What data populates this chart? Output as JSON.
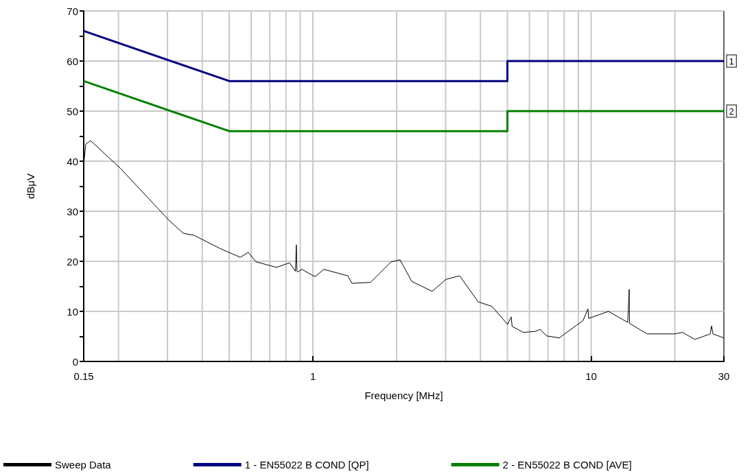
{
  "chart_data": {
    "type": "line",
    "xlabel": "Frequency [MHz]",
    "ylabel": "dBμV",
    "log": "x",
    "grid": true,
    "legend": "bottom",
    "marker": "none",
    "line_style": "solid",
    "xlim": [
      0.15,
      30
    ],
    "ylim": [
      0,
      70
    ],
    "xticks": [
      0.15,
      {
        "value": 0.2,
        "label": null
      },
      {
        "value": 0.3,
        "label": null
      },
      {
        "value": 0.4,
        "label": null
      },
      {
        "value": 0.5,
        "label": null
      },
      {
        "value": 0.6,
        "label": null
      },
      {
        "value": 0.7,
        "label": null
      },
      {
        "value": 0.8,
        "label": null
      },
      {
        "value": 0.9,
        "label": null
      },
      1,
      {
        "value": 2,
        "label": null
      },
      {
        "value": 3,
        "label": null
      },
      {
        "value": 4,
        "label": null
      },
      {
        "value": 5,
        "label": null
      },
      {
        "value": 6,
        "label": null
      },
      {
        "value": 7,
        "label": null
      },
      {
        "value": 8,
        "label": null
      },
      {
        "value": 9,
        "label": null
      },
      10,
      {
        "value": 20,
        "label": null
      },
      30
    ],
    "yticks": [
      0,
      10,
      20,
      30,
      40,
      50,
      60,
      70
    ],
    "series": [
      {
        "name": "Sweep Data",
        "color": "#000000",
        "x": [
          0.15,
          0.1526,
          0.1588,
          0.203,
          0.305,
          0.342,
          0.374,
          0.462,
          0.548,
          0.586,
          0.624,
          0.74,
          0.824,
          0.865,
          0.872,
          0.876,
          0.882,
          0.913,
          1.011,
          1.023,
          1.094,
          1.335,
          1.381,
          1.611,
          1.909,
          2.057,
          2.265,
          2.684,
          3.008,
          3.369,
          3.927,
          4.4,
          5.01,
          5.16,
          5.2,
          5.71,
          6.29,
          6.55,
          6.93,
          7.68,
          9.36,
          9.74,
          9.8,
          11.55,
          13.54,
          13.7,
          13.75,
          15.9,
          19.9,
          21.3,
          23.6,
          26.8,
          27.1,
          27.4,
          30
        ],
        "values": [
          39.3,
          43.4,
          44.1,
          38.6,
          28.1,
          25.6,
          25.2,
          22.6,
          20.8,
          21.8,
          19.9,
          18.8,
          19.7,
          18.0,
          23.3,
          18.0,
          17.9,
          18.4,
          17.0,
          17.0,
          18.4,
          17.1,
          15.6,
          15.8,
          19.9,
          20.3,
          16.0,
          14.0,
          16.4,
          17.1,
          11.9,
          11.0,
          7.4,
          8.9,
          7.0,
          5.8,
          6.0,
          6.4,
          5.1,
          4.7,
          8.2,
          10.5,
          8.6,
          10.0,
          7.8,
          14.4,
          7.6,
          5.5,
          5.5,
          5.8,
          4.4,
          5.5,
          7.1,
          5.5,
          4.7
        ]
      },
      {
        "name": "1 - EN55022 B COND [QP]",
        "color": "#000080",
        "x": [
          0.15,
          0.5,
          5,
          5,
          30
        ],
        "values": [
          66,
          56,
          56,
          60,
          60
        ]
      },
      {
        "name": "2 - EN55022 B COND [AVE]",
        "color": "#008000",
        "x": [
          0.15,
          0.5,
          5,
          5,
          30
        ],
        "values": [
          56,
          46,
          46,
          50,
          50
        ]
      }
    ],
    "annotations": [
      {
        "text": "1",
        "x": 30,
        "y": 60
      },
      {
        "text": "2",
        "x": 30,
        "y": 50
      }
    ]
  }
}
